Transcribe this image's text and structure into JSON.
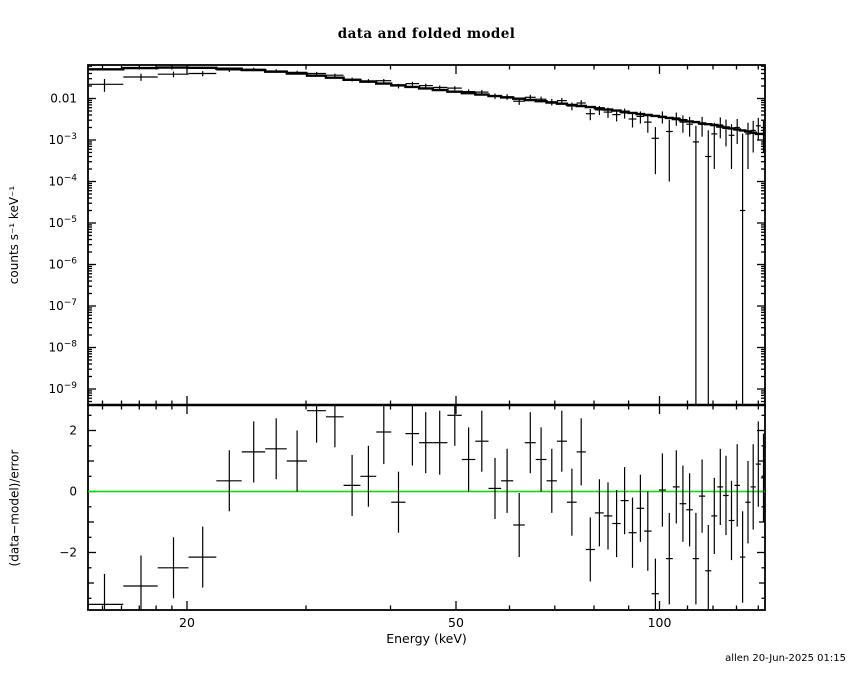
{
  "title": "data and folded model",
  "signature": "allen 20-Jun-2025 01:15",
  "chart_data": {
    "type": "scatter",
    "title": "data and folded model",
    "xlabel": "Energy (keV)",
    "x_scale": "log",
    "x_range": [
      14.31,
      143.2
    ],
    "x_major_ticks": [
      20,
      50,
      100
    ],
    "x_major_labels": [
      "20",
      "50",
      "100"
    ],
    "x_minor_ticks": [
      15,
      16,
      17,
      18,
      19,
      30,
      40,
      60,
      70,
      80,
      90,
      110,
      120,
      130,
      140
    ],
    "grid": false,
    "legend": "none",
    "panels": {
      "spectrum": {
        "ylabel": "counts s⁻¹ keV⁻¹",
        "y_scale": "log",
        "y_range": [
          4.1e-10,
          0.064
        ],
        "y_ticks": [
          {
            "v": 0.01,
            "label": "0.01"
          },
          {
            "v": 0.001,
            "exp": -3
          },
          {
            "v": 0.0001,
            "exp": -4
          },
          {
            "v": 1e-05,
            "exp": -5
          },
          {
            "v": 1e-06,
            "exp": -6
          },
          {
            "v": 1e-07,
            "exp": -7
          },
          {
            "v": 1e-08,
            "exp": -8
          },
          {
            "v": 1e-09,
            "exp": -9
          }
        ],
        "series": [
          {
            "name": "data",
            "style": "cross-errorbars",
            "color": "#000000"
          },
          {
            "name": "folded model",
            "style": "step-histogram",
            "color": "#000000"
          }
        ]
      },
      "residuals": {
        "ylabel": "(data−model)/error",
        "y_scale": "linear",
        "y_range": [
          -3.89,
          2.84
        ],
        "y_ticks": [
          {
            "v": -2,
            "label": "−2"
          },
          {
            "v": 0,
            "label": "0"
          },
          {
            "v": 2,
            "label": "2"
          }
        ],
        "y_minor_unit_ticks": [
          -3,
          -1,
          1
        ],
        "y_minor_half_ticks": [
          -3.5,
          -2.5,
          -1.5,
          -0.5,
          0.5,
          1.5,
          2.5
        ],
        "zero_line_color": "#00dd00"
      }
    },
    "energy_kev": [
      15.1,
      17.1,
      19.1,
      21.1,
      23.1,
      25.1,
      27.1,
      29.1,
      31.1,
      33.1,
      35.1,
      37.1,
      39.1,
      41.1,
      43.1,
      45.1,
      47.3,
      49.8,
      52.2,
      54.6,
      57.1,
      59.5,
      62.0,
      64.4,
      66.8,
      69.3,
      71.7,
      74.2,
      76.6,
      79.0,
      81.5,
      83.9,
      86.4,
      88.8,
      91.2,
      93.7,
      96.1,
      98.6,
      101.0,
      103.4,
      105.9,
      108.3,
      110.8,
      113.2,
      115.6,
      118.1,
      120.5,
      123.0,
      125.4,
      127.8,
      130.3,
      132.7,
      135.2,
      137.6,
      140.0,
      142.5
    ],
    "rate": [
      0.022,
      0.033,
      0.0385,
      0.04,
      0.049,
      0.0505,
      0.046,
      0.0425,
      0.04,
      0.0365,
      0.0288,
      0.0265,
      0.0268,
      0.02,
      0.0228,
      0.0205,
      0.0185,
      0.0178,
      0.0147,
      0.0143,
      0.0115,
      0.011,
      0.0086,
      0.0107,
      0.0096,
      0.0083,
      0.0089,
      0.0066,
      0.0078,
      0.0043,
      0.0053,
      0.0047,
      0.0041,
      0.0045,
      0.0032,
      0.0037,
      0.0027,
      0.0011,
      0.0037,
      0.0016,
      0.0034,
      0.0027,
      0.0024,
      0.0009,
      0.0024,
      0.0004,
      0.0014,
      0.0023,
      0.0019,
      0.0013,
      0.002,
      2e-05,
      0.0014,
      0.0017,
      0.0022,
      0.0017
    ],
    "rate_err": [
      0.0075,
      0.0065,
      0.006,
      0.0058,
      0.0052,
      0.0048,
      0.0044,
      0.004,
      0.0037,
      0.0034,
      0.0031,
      0.0029,
      0.0027,
      0.0025,
      0.0024,
      0.0022,
      0.0021,
      0.002,
      0.0019,
      0.0018,
      0.0017,
      0.0017,
      0.0016,
      0.0016,
      0.0015,
      0.0015,
      0.0014,
      0.0014,
      0.0014,
      0.0013,
      0.0013,
      0.0013,
      0.0013,
      0.0012,
      0.0012,
      0.0012,
      0.0012,
      0.00095,
      0.0012,
      0.0015,
      0.0012,
      0.0012,
      0.0012,
      0.0013,
      0.0012,
      0.0013,
      0.0012,
      0.0012,
      0.0012,
      0.0011,
      0.0012,
      0.0014,
      0.0012,
      0.0012,
      0.0012,
      0.0012
    ],
    "model": [
      0.0505,
      0.054,
      0.0555,
      0.0548,
      0.0522,
      0.0485,
      0.0443,
      0.0398,
      0.0355,
      0.0317,
      0.0283,
      0.0254,
      0.0229,
      0.0208,
      0.019,
      0.0175,
      0.016,
      0.0146,
      0.0134,
      0.0124,
      0.0114,
      0.0106,
      0.0099,
      0.0092,
      0.0086,
      0.008,
      0.0075,
      0.007,
      0.0066,
      0.0062,
      0.0058,
      0.0054,
      0.0051,
      0.0048,
      0.0045,
      0.0042,
      0.004,
      0.0038,
      0.0036,
      0.0034,
      0.0032,
      0.003,
      0.0028,
      0.0027,
      0.0025,
      0.0024,
      0.0023,
      0.0021,
      0.002,
      0.0019,
      0.0018,
      0.0017,
      0.0016,
      0.0015,
      0.0014,
      0.0014
    ],
    "resid": [
      -3.7,
      -3.1,
      -2.5,
      -2.15,
      0.35,
      1.3,
      1.4,
      1.0,
      2.65,
      2.45,
      0.2,
      0.5,
      1.95,
      -0.35,
      1.9,
      1.6,
      1.6,
      2.5,
      1.05,
      1.65,
      0.1,
      0.35,
      -1.1,
      1.6,
      1.05,
      0.35,
      1.65,
      -0.35,
      1.3,
      -1.9,
      -0.7,
      -0.8,
      -1.05,
      -0.3,
      -1.35,
      -0.55,
      -1.3,
      -3.35,
      0.05,
      -2.2,
      0.15,
      -0.4,
      -0.6,
      -2.2,
      -0.15,
      -2.6,
      -0.8,
      0.15,
      -0.13,
      -0.95,
      0.2,
      -2.15,
      -0.35,
      0.15,
      0.9,
      0.45
    ],
    "resid_err": [
      1.0,
      1.0,
      1.0,
      1.0,
      1.0,
      1.0,
      1.0,
      1.0,
      1.05,
      1.0,
      1.0,
      1.0,
      1.05,
      1.0,
      1.05,
      1.0,
      1.05,
      1.0,
      1.05,
      1.0,
      1.0,
      1.05,
      1.05,
      1.0,
      1.05,
      1.05,
      1.0,
      1.1,
      1.1,
      1.05,
      1.1,
      1.1,
      1.1,
      1.1,
      1.15,
      1.1,
      1.3,
      1.15,
      1.2,
      1.5,
      1.2,
      1.25,
      1.2,
      1.5,
      1.2,
      1.5,
      1.25,
      1.25,
      1.3,
      1.3,
      1.35,
      1.5,
      1.35,
      1.4,
      1.4,
      1.45
    ]
  }
}
